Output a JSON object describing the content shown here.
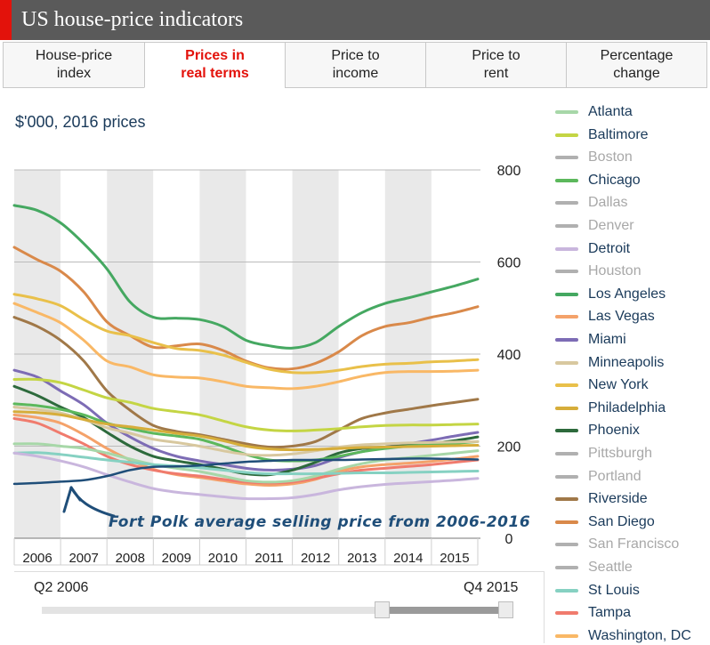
{
  "header": {
    "title": "US house-price indicators",
    "accent": "#e3120b",
    "background": "#5a5a5a"
  },
  "tabs": [
    {
      "label": "House-price\nindex",
      "active": false
    },
    {
      "label": "Prices in\nreal terms",
      "active": true
    },
    {
      "label": "Price to\nincome",
      "active": false
    },
    {
      "label": "Price to\nrent",
      "active": false
    },
    {
      "label": "Percentage\nchange",
      "active": false
    }
  ],
  "unit_label": "$'000, 2016 prices",
  "annotation": "Fort Polk average selling price from 2006-2016",
  "slider": {
    "start_label": "Q2 2006",
    "end_label": "Q4 2015",
    "start_fraction": 0.73,
    "end_fraction": 1.0
  },
  "legend": [
    {
      "name": "Atlanta",
      "color": "#a7d7a8",
      "active": true
    },
    {
      "name": "Baltimore",
      "color": "#c4d544",
      "active": true
    },
    {
      "name": "Boston",
      "color": "#b0b0b0",
      "active": false
    },
    {
      "name": "Chicago",
      "color": "#5cb85c",
      "active": true
    },
    {
      "name": "Dallas",
      "color": "#b0b0b0",
      "active": false
    },
    {
      "name": "Denver",
      "color": "#b0b0b0",
      "active": false
    },
    {
      "name": "Detroit",
      "color": "#c9b6dd",
      "active": true
    },
    {
      "name": "Houston",
      "color": "#b0b0b0",
      "active": false
    },
    {
      "name": "Los Angeles",
      "color": "#45a861",
      "active": true
    },
    {
      "name": "Las Vegas",
      "color": "#f4a26a",
      "active": true
    },
    {
      "name": "Miami",
      "color": "#7d6cb5",
      "active": true
    },
    {
      "name": "Minneapolis",
      "color": "#d8c89f",
      "active": true
    },
    {
      "name": "New York",
      "color": "#e9c04a",
      "active": true
    },
    {
      "name": "Philadelphia",
      "color": "#d6ad3a",
      "active": true
    },
    {
      "name": "Phoenix",
      "color": "#2d6a3c",
      "active": true
    },
    {
      "name": "Pittsburgh",
      "color": "#b0b0b0",
      "active": false
    },
    {
      "name": "Portland",
      "color": "#b0b0b0",
      "active": false
    },
    {
      "name": "Riverside",
      "color": "#a07848",
      "active": true
    },
    {
      "name": "San Diego",
      "color": "#d9894a",
      "active": true
    },
    {
      "name": "San Francisco",
      "color": "#b0b0b0",
      "active": false
    },
    {
      "name": "Seattle",
      "color": "#b0b0b0",
      "active": false
    },
    {
      "name": "St Louis",
      "color": "#86d1c2",
      "active": true
    },
    {
      "name": "Tampa",
      "color": "#f07b6d",
      "active": true
    },
    {
      "name": "Washington, DC",
      "color": "#f9b866",
      "active": true
    }
  ],
  "chart_data": {
    "type": "line",
    "title": "",
    "ylabel": "$'000, 2016 prices",
    "ylim": [
      0,
      800
    ],
    "yticks": [
      0,
      200,
      400,
      600,
      800
    ],
    "xlim": [
      2006,
      2016
    ],
    "categories": [
      "2006",
      "2007",
      "2008",
      "2009",
      "2010",
      "2011",
      "2012",
      "2013",
      "2014",
      "2015"
    ],
    "grid": true,
    "series": [
      {
        "name": "Los Angeles",
        "color": "#45a861",
        "x": [
          2006,
          2006.5,
          2007,
          2007.5,
          2008,
          2008.5,
          2009,
          2009.5,
          2010,
          2010.5,
          2011,
          2011.5,
          2012,
          2012.5,
          2013,
          2013.5,
          2014,
          2014.5,
          2015,
          2015.5,
          2016
        ],
        "y": [
          723,
          712,
          685,
          640,
          585,
          513,
          480,
          478,
          475,
          460,
          430,
          418,
          413,
          425,
          460,
          490,
          510,
          522,
          535,
          548,
          563
        ]
      },
      {
        "name": "San Diego",
        "color": "#d9894a",
        "x": [
          2006,
          2006.5,
          2007,
          2007.5,
          2008,
          2008.5,
          2009,
          2009.5,
          2010,
          2010.5,
          2011,
          2011.5,
          2012,
          2012.5,
          2013,
          2013.5,
          2014,
          2014.5,
          2015,
          2015.5,
          2016
        ],
        "y": [
          632,
          605,
          580,
          535,
          470,
          440,
          415,
          418,
          422,
          408,
          385,
          370,
          368,
          380,
          405,
          440,
          460,
          468,
          480,
          490,
          503
        ]
      },
      {
        "name": "New York",
        "color": "#e9c04a",
        "x": [
          2006,
          2006.5,
          2007,
          2007.5,
          2008,
          2008.5,
          2009,
          2009.5,
          2010,
          2010.5,
          2011,
          2011.5,
          2012,
          2012.5,
          2013,
          2013.5,
          2014,
          2014.5,
          2015,
          2015.5,
          2016
        ],
        "y": [
          530,
          520,
          505,
          475,
          450,
          440,
          425,
          412,
          408,
          398,
          382,
          367,
          360,
          360,
          365,
          373,
          378,
          380,
          383,
          385,
          388
        ]
      },
      {
        "name": "Washington, DC",
        "color": "#f9b866",
        "x": [
          2006,
          2006.5,
          2007,
          2007.5,
          2008,
          2008.5,
          2009,
          2009.5,
          2010,
          2010.5,
          2011,
          2011.5,
          2012,
          2012.5,
          2013,
          2013.5,
          2014,
          2014.5,
          2015,
          2015.5,
          2016
        ],
        "y": [
          510,
          490,
          468,
          430,
          385,
          372,
          355,
          350,
          348,
          340,
          330,
          327,
          325,
          330,
          340,
          352,
          360,
          362,
          362,
          363,
          365
        ]
      },
      {
        "name": "Riverside",
        "color": "#a07848",
        "x": [
          2006,
          2006.5,
          2007,
          2007.5,
          2008,
          2008.5,
          2009,
          2009.5,
          2010,
          2010.5,
          2011,
          2011.5,
          2012,
          2012.5,
          2013,
          2013.5,
          2014,
          2014.5,
          2015,
          2015.5,
          2016
        ],
        "y": [
          480,
          460,
          430,
          385,
          320,
          278,
          245,
          232,
          225,
          215,
          205,
          198,
          200,
          210,
          235,
          260,
          272,
          280,
          288,
          295,
          302
        ]
      },
      {
        "name": "Miami",
        "color": "#7d6cb5",
        "x": [
          2006,
          2006.5,
          2007,
          2007.5,
          2008,
          2008.5,
          2009,
          2009.5,
          2010,
          2010.5,
          2011,
          2011.5,
          2012,
          2012.5,
          2013,
          2013.5,
          2014,
          2014.5,
          2015,
          2015.5,
          2016
        ],
        "y": [
          365,
          350,
          320,
          290,
          250,
          220,
          195,
          178,
          168,
          160,
          152,
          148,
          150,
          158,
          175,
          188,
          198,
          205,
          213,
          222,
          230
        ]
      },
      {
        "name": "Baltimore",
        "color": "#c4d544",
        "x": [
          2006,
          2006.5,
          2007,
          2007.5,
          2008,
          2008.5,
          2009,
          2009.5,
          2010,
          2010.5,
          2011,
          2011.5,
          2012,
          2012.5,
          2013,
          2013.5,
          2014,
          2014.5,
          2015,
          2015.5,
          2016
        ],
        "y": [
          345,
          345,
          338,
          322,
          305,
          295,
          282,
          275,
          268,
          255,
          242,
          235,
          233,
          235,
          238,
          242,
          245,
          246,
          246,
          247,
          248
        ]
      },
      {
        "name": "Phoenix",
        "color": "#2d6a3c",
        "x": [
          2006,
          2006.5,
          2007,
          2007.5,
          2008,
          2008.5,
          2009,
          2009.5,
          2010,
          2010.5,
          2011,
          2011.5,
          2012,
          2012.5,
          2013,
          2013.5,
          2014,
          2014.5,
          2015,
          2015.5,
          2016
        ],
        "y": [
          330,
          310,
          285,
          262,
          230,
          200,
          178,
          168,
          160,
          150,
          140,
          138,
          148,
          165,
          185,
          195,
          198,
          202,
          206,
          212,
          220
        ]
      },
      {
        "name": "Chicago",
        "color": "#5cb85c",
        "x": [
          2006,
          2006.5,
          2007,
          2007.5,
          2008,
          2008.5,
          2009,
          2009.5,
          2010,
          2010.5,
          2011,
          2011.5,
          2012,
          2012.5,
          2013,
          2013.5,
          2014,
          2014.5,
          2015,
          2015.5,
          2016
        ],
        "y": [
          292,
          288,
          280,
          268,
          250,
          238,
          228,
          222,
          215,
          200,
          182,
          170,
          168,
          170,
          178,
          188,
          195,
          200,
          203,
          206,
          210
        ]
      },
      {
        "name": "Minneapolis",
        "color": "#d8c89f",
        "x": [
          2006,
          2006.5,
          2007,
          2007.5,
          2008,
          2008.5,
          2009,
          2009.5,
          2010,
          2010.5,
          2011,
          2011.5,
          2012,
          2012.5,
          2013,
          2013.5,
          2014,
          2014.5,
          2015,
          2015.5,
          2016
        ],
        "y": [
          285,
          280,
          272,
          258,
          240,
          228,
          215,
          208,
          200,
          190,
          182,
          180,
          183,
          190,
          198,
          203,
          205,
          207,
          208,
          209,
          210
        ]
      },
      {
        "name": "Philadelphia",
        "color": "#d6ad3a",
        "x": [
          2006,
          2006.5,
          2007,
          2007.5,
          2008,
          2008.5,
          2009,
          2009.5,
          2010,
          2010.5,
          2011,
          2011.5,
          2012,
          2012.5,
          2013,
          2013.5,
          2014,
          2014.5,
          2015,
          2015.5,
          2016
        ],
        "y": [
          275,
          273,
          268,
          258,
          248,
          242,
          235,
          228,
          222,
          212,
          200,
          194,
          192,
          193,
          195,
          197,
          198,
          199,
          200,
          201,
          202
        ]
      },
      {
        "name": "Las Vegas",
        "color": "#f4a26a",
        "x": [
          2006,
          2006.5,
          2007,
          2007.5,
          2008,
          2008.5,
          2009,
          2009.5,
          2010,
          2010.5,
          2011,
          2011.5,
          2012,
          2012.5,
          2013,
          2013.5,
          2014,
          2014.5,
          2015,
          2015.5,
          2016
        ],
        "y": [
          268,
          262,
          250,
          225,
          195,
          170,
          150,
          138,
          132,
          125,
          118,
          115,
          118,
          128,
          145,
          155,
          160,
          163,
          167,
          172,
          178
        ]
      },
      {
        "name": "Tampa",
        "color": "#f07b6d",
        "x": [
          2006,
          2006.5,
          2007,
          2007.5,
          2008,
          2008.5,
          2009,
          2009.5,
          2010,
          2010.5,
          2011,
          2011.5,
          2012,
          2012.5,
          2013,
          2013.5,
          2014,
          2014.5,
          2015,
          2015.5,
          2016
        ],
        "y": [
          260,
          250,
          228,
          205,
          178,
          160,
          148,
          140,
          135,
          128,
          122,
          120,
          122,
          130,
          140,
          148,
          152,
          156,
          160,
          165,
          170
        ]
      },
      {
        "name": "Atlanta",
        "color": "#a7d7a8",
        "x": [
          2006,
          2006.5,
          2007,
          2007.5,
          2008,
          2008.5,
          2009,
          2009.5,
          2010,
          2010.5,
          2011,
          2011.5,
          2012,
          2012.5,
          2013,
          2013.5,
          2014,
          2014.5,
          2015,
          2015.5,
          2016
        ],
        "y": [
          205,
          205,
          200,
          195,
          185,
          172,
          160,
          152,
          145,
          135,
          125,
          122,
          125,
          135,
          150,
          162,
          170,
          175,
          180,
          185,
          190
        ]
      },
      {
        "name": "St Louis",
        "color": "#86d1c2",
        "x": [
          2006,
          2006.5,
          2007,
          2007.5,
          2008,
          2008.5,
          2009,
          2009.5,
          2010,
          2010.5,
          2011,
          2011.5,
          2012,
          2012.5,
          2013,
          2013.5,
          2014,
          2014.5,
          2015,
          2015.5,
          2016
        ],
        "y": [
          185,
          186,
          182,
          176,
          170,
          165,
          160,
          157,
          153,
          148,
          143,
          140,
          140,
          140,
          141,
          142,
          142,
          143,
          144,
          145,
          146
        ]
      },
      {
        "name": "Detroit",
        "color": "#c9b6dd",
        "x": [
          2006,
          2006.5,
          2007,
          2007.5,
          2008,
          2008.5,
          2009,
          2009.5,
          2010,
          2010.5,
          2011,
          2011.5,
          2012,
          2012.5,
          2013,
          2013.5,
          2014,
          2014.5,
          2015,
          2015.5,
          2016
        ],
        "y": [
          185,
          178,
          168,
          155,
          138,
          122,
          108,
          100,
          95,
          90,
          86,
          86,
          88,
          95,
          105,
          112,
          117,
          120,
          123,
          126,
          130
        ]
      },
      {
        "name": "Fort Polk",
        "color": "#1f4e79",
        "x": [
          2006,
          2006.5,
          2007,
          2007.5,
          2008,
          2008.5,
          2009,
          2009.5,
          2010,
          2010.5,
          2011,
          2011.5,
          2012,
          2012.5,
          2013,
          2013.5,
          2014,
          2014.5,
          2015,
          2015.5,
          2016
        ],
        "y": [
          118,
          120,
          123,
          126,
          135,
          148,
          155,
          156,
          158,
          162,
          166,
          168,
          170,
          170,
          170,
          171,
          172,
          173,
          173,
          172,
          171
        ]
      }
    ]
  }
}
